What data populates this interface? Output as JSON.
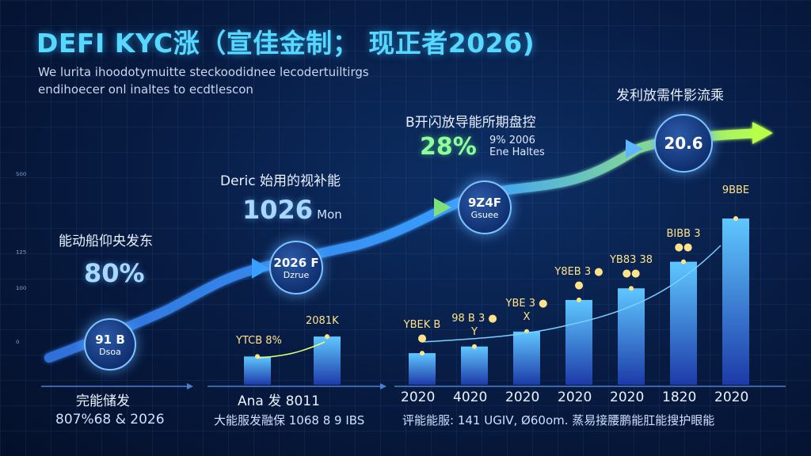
{
  "title": "DEFI KYC涨（宣佳金制； 现正者2026)",
  "subtitle_lines": [
    "We lurita ihoodotymuitte steckoodidnee lecodertuiltirgs",
    "endihoecer onl inaltes to ecdtlescon"
  ],
  "y_ticks": [
    "₅₀₀",
    "¹²⁵",
    "₁₀₀",
    "₀"
  ],
  "left_panel": {
    "heading": "能动船仰央发东",
    "value": "80%",
    "circle_value": "91 B",
    "circle_caption": "Dsoa",
    "x_label": "完能储发",
    "footer": "807%68 & 2026"
  },
  "mid_panel": {
    "heading": "Deric 始用的视补能",
    "value": "1026",
    "value_suffix": "Mon",
    "circle_value": "2026 F",
    "circle_caption": "Dzrue",
    "x_label": "Ana 发 8011",
    "footer": "大能服发融保 1068 8 9 IBS",
    "bar_labels": [
      "YTCB 8%",
      "2081K"
    ]
  },
  "right_panel": {
    "heading_top": "发利放需件影流乘",
    "heading_green": "B开闪放导能所期盘控",
    "green_value": "28%",
    "green_caption": "9% 2006 Ene Haltes",
    "circle_mid_value": "9Z4F",
    "circle_mid_caption": "Gsuee",
    "circle_top_value": "20.6",
    "footer": "评能能服: 141 UGIV, Ø60om. 蒸易接腰鹏能肛能搜护眼能",
    "top_label": "9BBE"
  },
  "colors": {
    "title": "#56d8ff",
    "bar_top": "#5fc7ff",
    "bar_bottom": "#1d3aa8",
    "arrow_start": "#2f6fd8",
    "arrow_end": "#b8ff4a",
    "label_yellow": "#ffe38a"
  },
  "chart_data": {
    "type": "bar",
    "categories": [
      "2020",
      "2020",
      "2020",
      "2020",
      "2020",
      "2020",
      "2020"
    ],
    "values": [
      19,
      23,
      32,
      51,
      58,
      74,
      100
    ],
    "bar_labels": [
      "YBEK B ●",
      "98 B 3 ● Y",
      "YBE 3 ● X",
      "Y8EB 3 ● ●",
      "YB83 38 ●●",
      "BIBB 3 ●●",
      "9BBE"
    ],
    "x_labels_display": [
      "2020",
      "4020",
      "2020",
      "2020",
      "2020",
      "1820",
      "2020"
    ],
    "left_bars": [
      {
        "label": "YTCB 8%",
        "value": 17
      },
      {
        "label": "2081K",
        "value": 29
      }
    ],
    "ylim": [
      0,
      100
    ],
    "title": "",
    "xlabel": "",
    "ylabel": ""
  }
}
